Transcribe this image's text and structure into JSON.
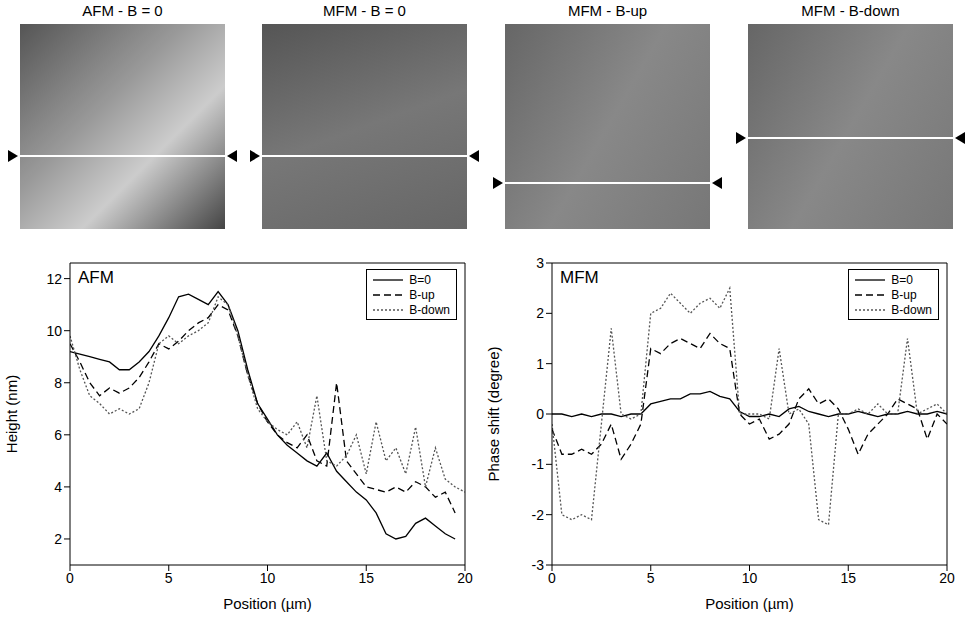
{
  "images": [
    {
      "title": "AFM - B = 0"
    },
    {
      "title": "MFM - B = 0"
    },
    {
      "title": "MFM - B-up"
    },
    {
      "title": "MFM - B-down"
    }
  ],
  "chart_data": [
    {
      "type": "line",
      "annotation": "AFM",
      "x_label": "Position  (µm)",
      "y_label": "Height (nm)",
      "xlim": [
        0,
        20
      ],
      "xticks": [
        0,
        5,
        10,
        15,
        20
      ],
      "ylim": [
        1,
        12.6
      ],
      "yticks": [
        2,
        4,
        6,
        8,
        10,
        12
      ],
      "grid": false,
      "legend": "upper right",
      "x": [
        0,
        0.5,
        1,
        1.5,
        2,
        2.5,
        3,
        3.5,
        4,
        4.5,
        5,
        5.5,
        6,
        6.5,
        7,
        7.5,
        8,
        8.5,
        9,
        9.5,
        10,
        10.5,
        11,
        11.5,
        12,
        12.5,
        13,
        13.5,
        14,
        14.5,
        15,
        15.5,
        16,
        16.5,
        17,
        17.5,
        18,
        18.5,
        19,
        19.5,
        20
      ],
      "series": [
        {
          "name": "B=0",
          "color": "#000000",
          "line_style": "solid",
          "values": [
            9.2,
            9.1,
            9.0,
            8.9,
            8.8,
            8.5,
            8.5,
            8.8,
            9.2,
            9.8,
            10.5,
            11.3,
            11.4,
            11.2,
            11.0,
            11.5,
            11.0,
            10.0,
            8.5,
            7.2,
            6.6,
            6.0,
            5.6,
            5.3,
            5.0,
            4.8,
            5.3,
            4.6,
            4.2,
            3.8,
            3.5,
            3.0,
            2.2,
            2.0,
            2.1,
            2.6,
            2.8,
            2.5,
            2.2,
            2.0,
            null
          ]
        },
        {
          "name": "B-up",
          "color": "#000000",
          "line_style": "dashed",
          "values": [
            9.5,
            8.8,
            8.0,
            7.5,
            7.8,
            7.6,
            7.8,
            8.2,
            8.8,
            9.5,
            9.3,
            9.6,
            10.0,
            10.3,
            10.5,
            11.0,
            10.8,
            9.8,
            8.3,
            7.2,
            6.5,
            6.0,
            5.7,
            5.5,
            6.0,
            5.0,
            4.8,
            8.0,
            5.0,
            4.5,
            4.0,
            3.9,
            3.8,
            4.0,
            3.8,
            4.2,
            4.0,
            3.6,
            3.8,
            3.0,
            null
          ]
        },
        {
          "name": "B-down",
          "color": "#555555",
          "line_style": "dotted",
          "values": [
            9.8,
            8.5,
            7.5,
            7.2,
            6.8,
            7.0,
            6.8,
            7.0,
            8.0,
            9.5,
            9.8,
            9.5,
            9.8,
            10.0,
            10.3,
            11.3,
            11.0,
            9.8,
            8.3,
            7.0,
            6.5,
            6.2,
            6.0,
            6.5,
            5.5,
            7.5,
            5.0,
            4.8,
            5.2,
            6.0,
            4.5,
            6.5,
            5.0,
            5.5,
            4.5,
            6.3,
            4.0,
            5.5,
            4.3,
            4.0,
            3.8
          ]
        }
      ]
    },
    {
      "type": "line",
      "annotation": "MFM",
      "x_label": "Position  (µm)",
      "y_label": "Phase shift (degree)",
      "xlim": [
        0,
        20
      ],
      "xticks": [
        0,
        5,
        10,
        15,
        20
      ],
      "ylim": [
        -3,
        3
      ],
      "yticks": [
        -3,
        -2,
        -1,
        0,
        1,
        2,
        3
      ],
      "grid": false,
      "legend": "upper right",
      "x": [
        0,
        0.5,
        1,
        1.5,
        2,
        2.5,
        3,
        3.5,
        4,
        4.5,
        5,
        5.5,
        6,
        6.5,
        7,
        7.5,
        8,
        8.5,
        9,
        9.5,
        10,
        10.5,
        11,
        11.5,
        12,
        12.5,
        13,
        13.5,
        14,
        14.5,
        15,
        15.5,
        16,
        16.5,
        17,
        17.5,
        18,
        18.5,
        19,
        19.5,
        20
      ],
      "series": [
        {
          "name": "B=0",
          "color": "#000000",
          "line_style": "solid",
          "values": [
            0,
            0,
            -0.05,
            0,
            -0.05,
            0,
            0,
            -0.05,
            0,
            0,
            0.2,
            0.25,
            0.3,
            0.3,
            0.4,
            0.4,
            0.45,
            0.35,
            0.3,
            0.05,
            -0.05,
            -0.05,
            0,
            -0.05,
            0.1,
            0.15,
            0.05,
            0,
            -0.05,
            0,
            0,
            0.05,
            0,
            -0.05,
            0,
            0,
            0.05,
            0,
            0,
            0.05,
            0
          ]
        },
        {
          "name": "B-up",
          "color": "#000000",
          "line_style": "dashed",
          "values": [
            -0.3,
            -0.8,
            -0.8,
            -0.7,
            -0.8,
            -0.6,
            -0.2,
            -0.9,
            -0.6,
            -0.2,
            1.3,
            1.2,
            1.4,
            1.5,
            1.4,
            1.3,
            1.6,
            1.4,
            1.3,
            0,
            -0.2,
            -0.1,
            -0.5,
            -0.4,
            -0.2,
            0.3,
            0.5,
            0.2,
            0.3,
            0.1,
            -0.3,
            -0.8,
            -0.4,
            -0.2,
            0,
            0.3,
            0.2,
            0.1,
            -0.5,
            0,
            -0.2
          ]
        },
        {
          "name": "B-down",
          "color": "#555555",
          "line_style": "dotted",
          "values": [
            -0.2,
            -2.0,
            -2.1,
            -2.0,
            -2.1,
            -0.2,
            1.7,
            0,
            -0.1,
            0,
            2.0,
            2.1,
            2.4,
            2.2,
            2.0,
            2.2,
            2.3,
            2.1,
            2.5,
            0,
            0,
            0,
            -0.1,
            1.3,
            0,
            0.1,
            -0.2,
            -2.1,
            -2.2,
            0,
            0,
            0.1,
            0,
            0.2,
            0,
            0,
            1.5,
            0,
            0.1,
            0.2,
            0
          ]
        }
      ]
    }
  ]
}
